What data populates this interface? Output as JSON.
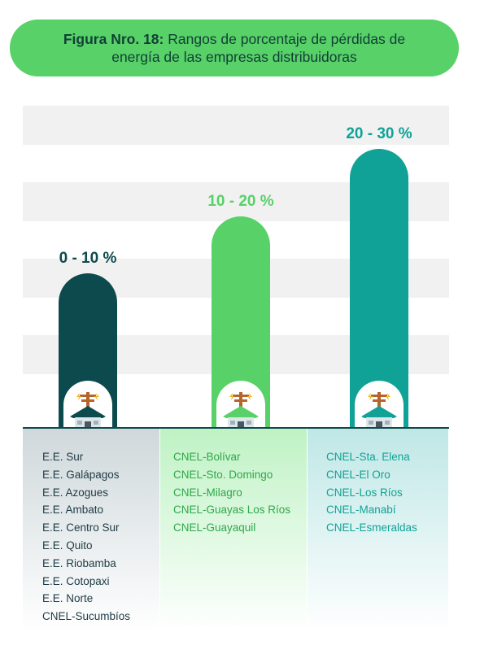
{
  "title": {
    "bold": "Figura Nro. 18:",
    "line1": "Rangos de porcentaje de pérdidas de",
    "line2": "energía de las empresas distribuidoras"
  },
  "chart_data": {
    "type": "bar",
    "categories": [
      "0 - 10 %",
      "10 - 20 %",
      "20 - 30 %"
    ],
    "values": [
      10,
      20,
      30
    ],
    "colors": [
      "#0c4a4d",
      "#57d168",
      "#10a296"
    ],
    "groups": [
      [
        "E.E. Sur",
        "E.E. Galápagos",
        "E.E. Azogues",
        "E.E. Ambato",
        "E.E. Centro Sur",
        "E.E. Quito",
        "E.E. Riobamba",
        "E.E. Cotopaxi",
        "E.E. Norte",
        "CNEL-Sucumbíos"
      ],
      [
        "CNEL-Bolívar",
        "CNEL-Sto. Domingo",
        "CNEL-Milagro",
        "CNEL-Guayas Los Ríos",
        "CNEL-Guayaquil"
      ],
      [
        "CNEL-Sta. Elena",
        "CNEL-El Oro",
        "CNEL-Los Ríos",
        "CNEL-Manabí",
        "CNEL-Esmeraldas"
      ]
    ],
    "list_colors": [
      "#1d3a45",
      "#2fa84a",
      "#10a296"
    ],
    "icon": "house-with-power-pole-icon"
  }
}
